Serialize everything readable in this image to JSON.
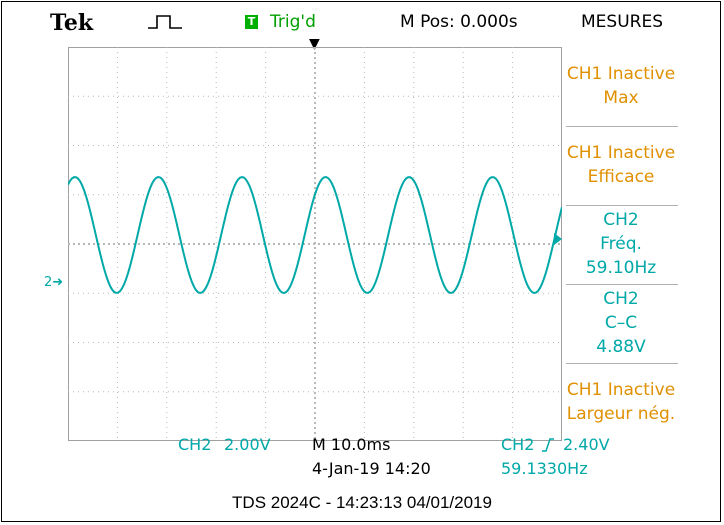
{
  "header": {
    "brand": "Tek",
    "acquire_icon": "pulse-icon",
    "trigger_box": "T",
    "trigger_status": "Trig'd",
    "m_pos": "M Pos: 0.000s",
    "menu_title": "MESURES"
  },
  "colors": {
    "ch2": "#00a8a8",
    "orange": "#e09000",
    "green": "#00a000"
  },
  "measures": [
    {
      "line1": "CH1 Inactive",
      "line2": "Max",
      "line3": ""
    },
    {
      "line1": "CH1 Inactive",
      "line2": "Efficace",
      "line3": ""
    },
    {
      "line1": "CH2",
      "line2": "Fréq.",
      "line3": "59.10Hz"
    },
    {
      "line1": "CH2",
      "line2": "C–C",
      "line3": "4.88V"
    },
    {
      "line1": "CH1 Inactive",
      "line2": "Largeur nég.",
      "line3": ""
    }
  ],
  "bottom": {
    "ch2_label": "CH2",
    "ch2_scale": "2.00V",
    "timebase": "M 10.0ms",
    "datetime": "4-Jan-19 14:20",
    "trigger_source": "CH2",
    "trigger_level": "2.40V",
    "trigger_freq": "59.1330Hz"
  },
  "footer": "TDS 2024C - 14:23:13   04/01/2019",
  "chart_data": {
    "type": "line",
    "series": [
      {
        "frequency_hz": 59.13,
        "peak_to_peak_v": 4.88,
        "offset_div": 1.0
      }
    ],
    "volts_per_div": 2.0,
    "time_per_div_ms": 10.0,
    "divisions_x": 10,
    "divisions_y": 8
  }
}
